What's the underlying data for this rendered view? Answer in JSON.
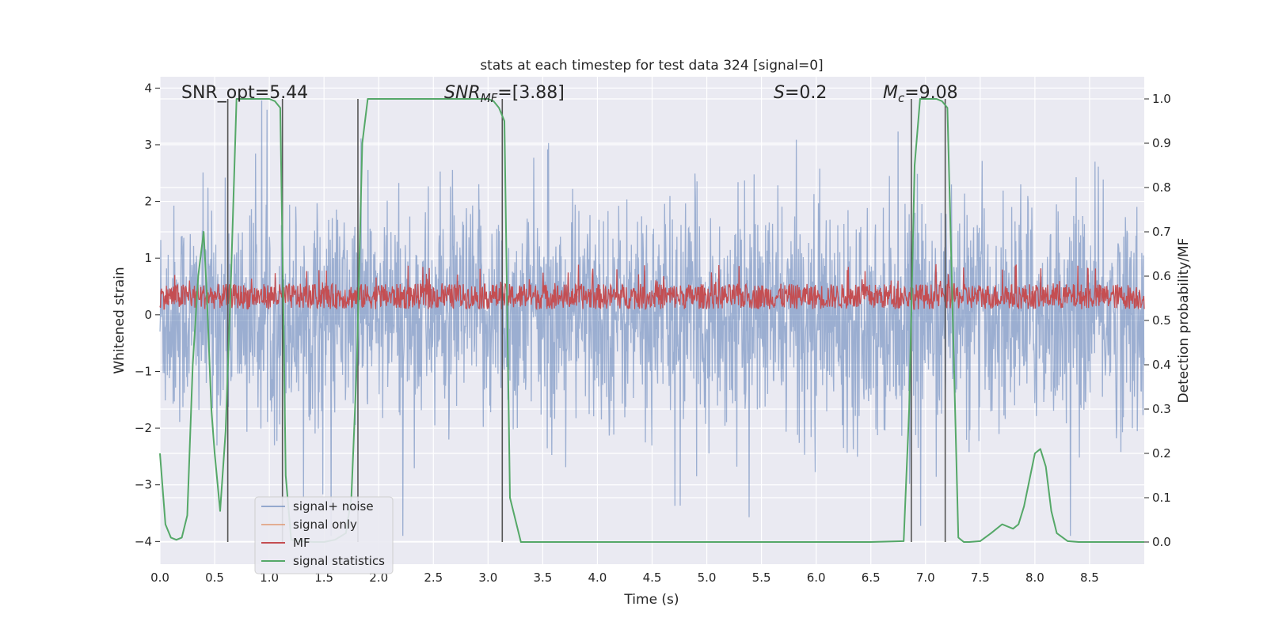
{
  "chart_data": {
    "type": "line",
    "title": "stats at each timestep for test data 324 [signal=0]",
    "xlabel": "Time (s)",
    "ylabel_left": "Whitened strain",
    "ylabel_right": "Detection probability/MF",
    "xlim": [
      0,
      9
    ],
    "ylim_left": [
      -4.4,
      4.2
    ],
    "ylim_right": [
      -0.05,
      1.05
    ],
    "x_ticks": [
      "0.0",
      "0.5",
      "1.0",
      "1.5",
      "2.0",
      "2.5",
      "3.0",
      "3.5",
      "4.0",
      "4.5",
      "5.0",
      "5.5",
      "6.0",
      "6.5",
      "7.0",
      "7.5",
      "8.0",
      "8.5"
    ],
    "y_ticks_left": [
      "4",
      "3",
      "2",
      "1",
      "0",
      "−1",
      "−2",
      "−3",
      "−4"
    ],
    "y_ticks_right": [
      "1.0",
      "0.9",
      "0.8",
      "0.7",
      "0.6",
      "0.5",
      "0.4",
      "0.3",
      "0.2",
      "0.1",
      "0.0"
    ],
    "grid": true,
    "legend_position": "lower-left",
    "annotations": [
      {
        "text": "SNR_opt=5.44",
        "x": 0.2
      },
      {
        "text_main": "SNR",
        "text_sub": "MF",
        "text_rest": "=[3.88]",
        "x": 2.6
      },
      {
        "text_main": "S",
        "text_rest": "=0.2",
        "x": 5.6
      },
      {
        "text_main": "M",
        "text_sub": "c",
        "text_rest": "=9.08",
        "x": 6.6
      }
    ],
    "series": [
      {
        "name": "signal+ noise",
        "color": "#4c72b0",
        "axis": "left",
        "style": "noise",
        "time_range": [
          0,
          9
        ],
        "envelope_upper": 2.2,
        "envelope_lower": -1.8,
        "peak_max": 3.8,
        "peak_min": -3.9
      },
      {
        "name": "signal only",
        "color": "#dd8452",
        "axis": "left",
        "style": "line"
      },
      {
        "name": "MF",
        "color": "#c44e52",
        "axis": "left",
        "style": "noise",
        "time_range": [
          0,
          9
        ],
        "center": 0.3,
        "spread": 0.28
      },
      {
        "name": "signal statistics",
        "color": "#55a868",
        "axis": "right",
        "style": "line",
        "x": [
          0.0,
          0.05,
          0.1,
          0.15,
          0.2,
          0.25,
          0.3,
          0.35,
          0.4,
          0.43,
          0.47,
          0.5,
          0.55,
          0.6,
          0.65,
          0.7,
          0.75,
          0.8,
          0.9,
          1.0,
          1.05,
          1.1,
          1.13,
          1.15,
          1.2,
          1.3,
          1.4,
          1.5,
          1.6,
          1.7,
          1.75,
          1.8,
          1.85,
          1.9,
          2.0,
          2.5,
          3.0,
          3.05,
          3.1,
          3.15,
          3.2,
          3.3,
          3.5,
          4.0,
          5.0,
          6.0,
          6.5,
          6.8,
          6.85,
          6.9,
          6.95,
          7.0,
          7.1,
          7.15,
          7.2,
          7.25,
          7.3,
          7.35,
          7.4,
          7.5,
          7.6,
          7.7,
          7.8,
          7.85,
          7.9,
          8.0,
          8.05,
          8.1,
          8.15,
          8.2,
          8.3,
          8.4,
          8.5,
          9.0
        ],
        "y": [
          0.2,
          0.04,
          0.01,
          0.005,
          0.01,
          0.06,
          0.4,
          0.6,
          0.7,
          0.55,
          0.3,
          0.2,
          0.07,
          0.25,
          0.6,
          1.0,
          1.0,
          1.0,
          1.0,
          1.0,
          0.995,
          0.98,
          0.5,
          0.15,
          0.005,
          0.002,
          0.0,
          0.0,
          0.005,
          0.02,
          0.1,
          0.4,
          0.9,
          1.0,
          1.0,
          1.0,
          1.0,
          0.995,
          0.98,
          0.95,
          0.1,
          0.0,
          0.0,
          0.0,
          0.0,
          0.0,
          0.0,
          0.002,
          0.3,
          0.85,
          1.0,
          1.0,
          1.0,
          0.995,
          0.98,
          0.5,
          0.01,
          0.0,
          0.0,
          0.002,
          0.02,
          0.04,
          0.03,
          0.04,
          0.08,
          0.2,
          0.21,
          0.17,
          0.07,
          0.02,
          0.002,
          0.0,
          0.0,
          0.0
        ]
      }
    ],
    "vertical_markers": [
      0.62,
      1.12,
      1.81,
      3.13,
      6.87,
      7.18
    ]
  }
}
